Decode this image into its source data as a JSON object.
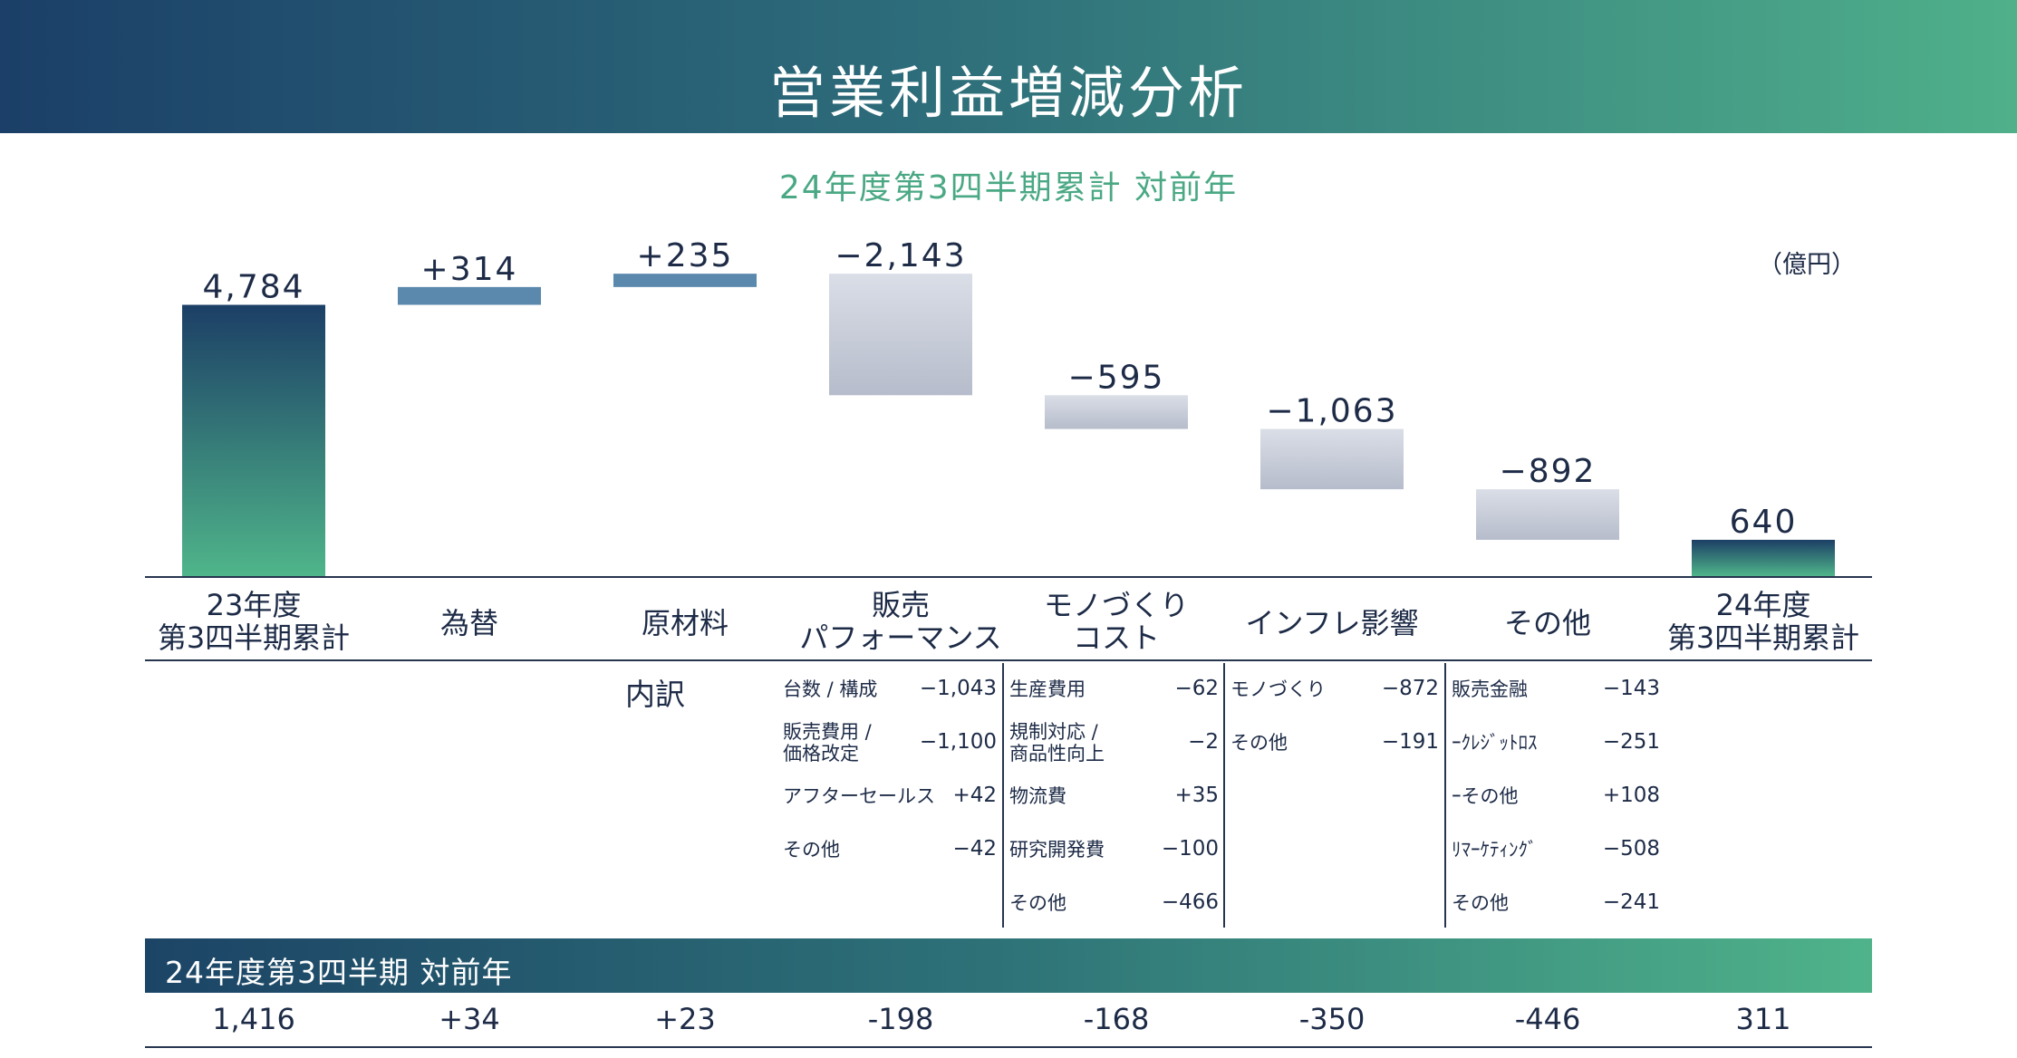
{
  "header": {
    "title": "営業利益増減分析"
  },
  "subtitle": "24年度第3四半期累計 対前年",
  "unit": "（億円）",
  "chart_data": {
    "type": "bar",
    "subtype": "waterfall",
    "categories": [
      "23年度\n第3四半期累計",
      "為替",
      "原材料",
      "販売\nパフォーマンス",
      "モノづくり\nコスト",
      "インフレ影響",
      "その他",
      "24年度\n第3四半期累計"
    ],
    "values": [
      4784,
      314,
      235,
      -2143,
      -595,
      -1063,
      -892,
      640
    ],
    "labels": [
      "4,784",
      "+314",
      "+235",
      "−2,143",
      "−595",
      "−1,063",
      "−892",
      "640"
    ],
    "kinds": [
      "total",
      "increase",
      "increase",
      "decrease",
      "decrease",
      "decrease",
      "decrease",
      "total"
    ],
    "colors": {
      "total_top": "#1c3f66",
      "total_bottom": "#4fb58a",
      "increase": "#5b88ad",
      "decrease_top": "#d9dde6",
      "decrease_bottom": "#b7bdcc"
    }
  },
  "breakdown": {
    "label": "内訳",
    "columns": [
      {
        "items": [
          {
            "name": "台数 / 構成",
            "value": "−1,043"
          },
          {
            "name": "販売費用 /\n価格改定",
            "value": "−1,100"
          },
          {
            "name": "アフターセールス",
            "value": "+42"
          },
          {
            "name": "その他",
            "value": "−42"
          }
        ]
      },
      {
        "items": [
          {
            "name": "生産費用",
            "value": "−62"
          },
          {
            "name": "規制対応 /\n商品性向上",
            "value": "−2"
          },
          {
            "name": "物流費",
            "value": "+35"
          },
          {
            "name": "研究開発費",
            "value": "−100"
          },
          {
            "name": "その他",
            "value": "−466"
          }
        ]
      },
      {
        "items": [
          {
            "name": "モノづくり",
            "value": "−872"
          },
          {
            "name": "その他",
            "value": "−191"
          }
        ]
      },
      {
        "items": [
          {
            "name": "販売金融",
            "value": "−143"
          },
          {
            "name": "ｰｸﾚｼﾞｯﾄﾛｽ",
            "value": "−251"
          },
          {
            "name": "ｰその他",
            "value": "+108"
          },
          {
            "name": "ﾘﾏｰｹﾃｨﾝｸﾞ",
            "value": "−508"
          },
          {
            "name": "その他",
            "value": "−241"
          }
        ]
      }
    ]
  },
  "quarter": {
    "label": "24年度第3四半期 対前年",
    "values": [
      "1,416",
      "+34",
      "+23",
      "-198",
      "-168",
      "-350",
      "-446",
      "311"
    ]
  }
}
